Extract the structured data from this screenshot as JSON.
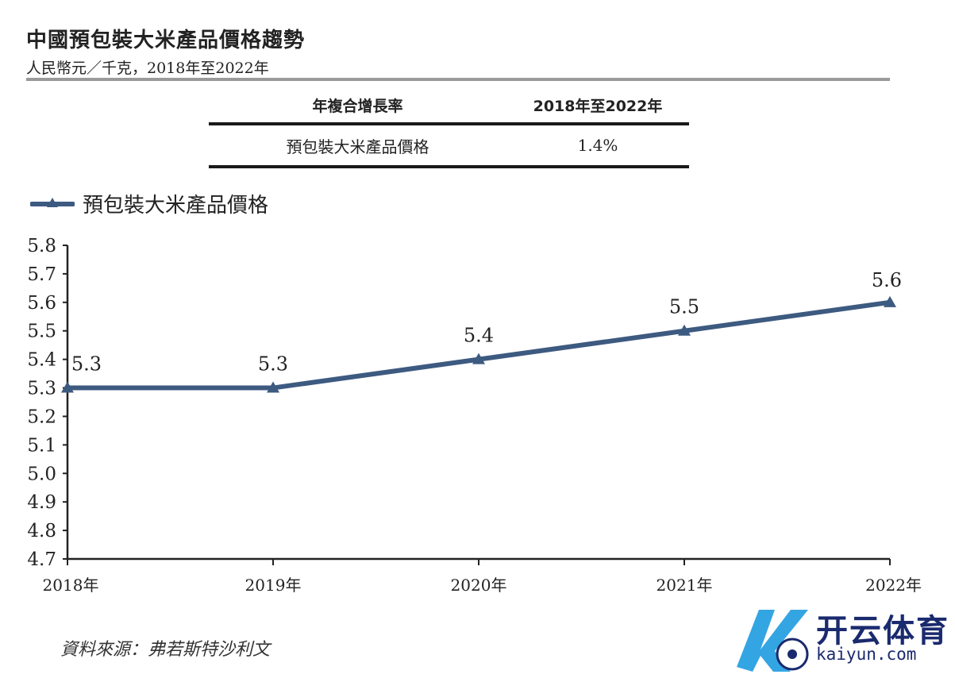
{
  "header": {
    "title": "中國預包裝大米產品價格趨勢",
    "subtitle": "人民幣元／千克，2018年至2022年"
  },
  "cagr_table": {
    "col1_header": "年複合增長率",
    "col2_header": "2018年至2022年",
    "row_label": "預包裝大米產品價格",
    "row_value": "1.4%"
  },
  "legend": {
    "label": "預包裝大米產品價格"
  },
  "chart_data": {
    "type": "line",
    "title": "中國預包裝大米產品價格趨勢",
    "xlabel": "",
    "ylabel": "人民幣元／千克",
    "categories": [
      "2018年",
      "2019年",
      "2020年",
      "2021年",
      "2022年"
    ],
    "series": [
      {
        "name": "預包裝大米產品價格",
        "values": [
          5.3,
          5.3,
          5.4,
          5.5,
          5.6
        ],
        "color": "#3d5a80"
      }
    ],
    "data_labels": [
      "5.3",
      "5.3",
      "5.4",
      "5.5",
      "5.6"
    ],
    "ylim": [
      4.7,
      5.8
    ],
    "yticks": [
      "5.8",
      "5.7",
      "5.6",
      "5.5",
      "5.4",
      "5.3",
      "5.2",
      "5.1",
      "5.0",
      "4.9",
      "4.8",
      "4.7"
    ],
    "grid": false,
    "legend_position": "top-left"
  },
  "source": "資料來源：弗若斯特沙利文",
  "watermark": {
    "cn": "开云体育",
    "en": "kaiyun.com"
  }
}
